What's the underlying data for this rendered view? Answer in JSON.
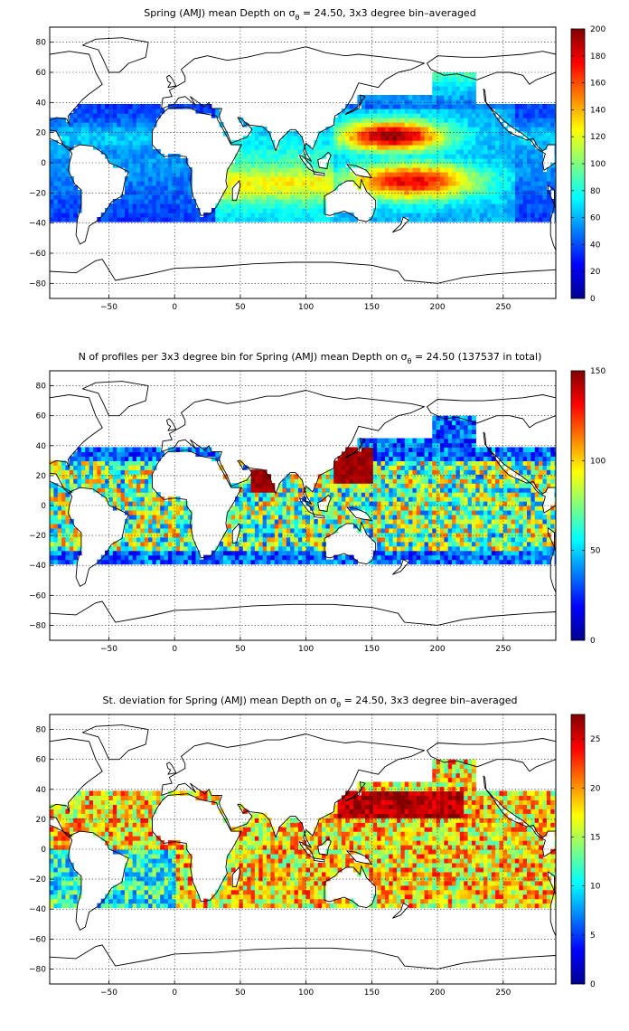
{
  "chart_data": [
    {
      "type": "heatmap",
      "title_before": "Spring (AMJ) mean Depth on σ",
      "title_sub": "θ",
      "title_after": " = 24.50, 3x3 degree bin–averaged",
      "xlim": [
        -95,
        290
      ],
      "ylim": [
        -90,
        90
      ],
      "xticks": [
        -50,
        0,
        50,
        100,
        150,
        200,
        250
      ],
      "yticks": [
        -80,
        -60,
        -40,
        -20,
        0,
        20,
        40,
        60,
        80
      ],
      "grid": true,
      "colormap": "jet",
      "clim": [
        0,
        200
      ],
      "cticks": [
        0,
        20,
        40,
        60,
        80,
        100,
        120,
        140,
        160,
        180,
        200
      ],
      "bin_deg": 3,
      "field": "mean_depth"
    },
    {
      "type": "heatmap",
      "title_before": "N of profiles per 3x3 degree bin for Spring (AMJ) mean Depth on σ",
      "title_sub": "θ",
      "title_after": " = 24.50 (137537 in total)",
      "xlim": [
        -95,
        290
      ],
      "ylim": [
        -90,
        90
      ],
      "xticks": [
        -50,
        0,
        50,
        100,
        150,
        200,
        250
      ],
      "yticks": [
        -80,
        -60,
        -40,
        -20,
        0,
        20,
        40,
        60,
        80
      ],
      "grid": true,
      "colormap": "jet",
      "clim": [
        0,
        150
      ],
      "cticks": [
        0,
        50,
        100,
        150
      ],
      "bin_deg": 3,
      "field": "profile_count",
      "total_profiles": 137537
    },
    {
      "type": "heatmap",
      "title_before": "St. deviation for Spring (AMJ) mean Depth on σ",
      "title_sub": "θ",
      "title_after": " = 24.50, 3x3 degree bin–averaged",
      "xlim": [
        -95,
        290
      ],
      "ylim": [
        -90,
        90
      ],
      "xticks": [
        -50,
        0,
        50,
        100,
        150,
        200,
        250
      ],
      "yticks": [
        -80,
        -60,
        -40,
        -20,
        0,
        20,
        40,
        60,
        80
      ],
      "grid": true,
      "colormap": "jet",
      "clim": [
        0,
        27.5
      ],
      "cticks": [
        0,
        5,
        10,
        15,
        20,
        25
      ],
      "bin_deg": 3,
      "field": "std_depth"
    }
  ]
}
